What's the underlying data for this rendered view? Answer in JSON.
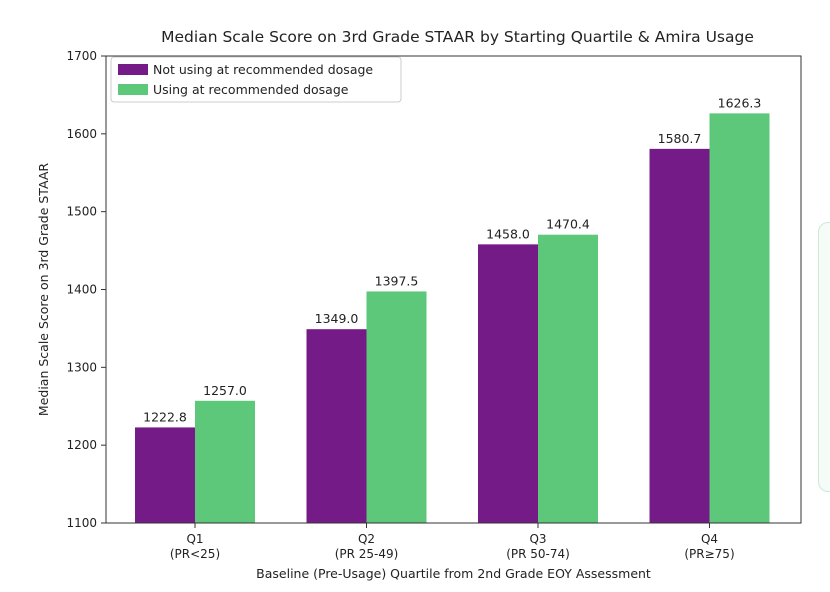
{
  "chart_data": {
    "type": "bar",
    "title": "Median Scale Score on 3rd Grade STAAR by Starting Quartile & Amira Usage",
    "xlabel": "Baseline (Pre-Usage) Quartile from 2nd Grade EOY Assessment",
    "ylabel": "Median Scale Score on 3rd Grade STAAR",
    "categories": [
      {
        "name": "Q1",
        "sub": "(PR<25)"
      },
      {
        "name": "Q2",
        "sub": "(PR 25-49)"
      },
      {
        "name": "Q3",
        "sub": "(PR 50-74)"
      },
      {
        "name": "Q4",
        "sub": "(PR≥75)"
      }
    ],
    "series": [
      {
        "name": "Not using at recommended dosage",
        "color": "#741b87",
        "values": [
          1222.8,
          1349.0,
          1458.0,
          1580.7
        ],
        "labels": [
          "1222.8",
          "1349.0",
          "1458.0",
          "1580.7"
        ]
      },
      {
        "name": "Using at recommended dosage",
        "color": "#5dc879",
        "values": [
          1257.0,
          1397.5,
          1470.4,
          1626.3
        ],
        "labels": [
          "1257.0",
          "1397.5",
          "1470.4",
          "1626.3"
        ]
      }
    ],
    "ylim": [
      1100,
      1700
    ],
    "yticks": [
      1100,
      1200,
      1300,
      1400,
      1500,
      1600,
      1700
    ],
    "grid": false,
    "legend": "top-left"
  }
}
